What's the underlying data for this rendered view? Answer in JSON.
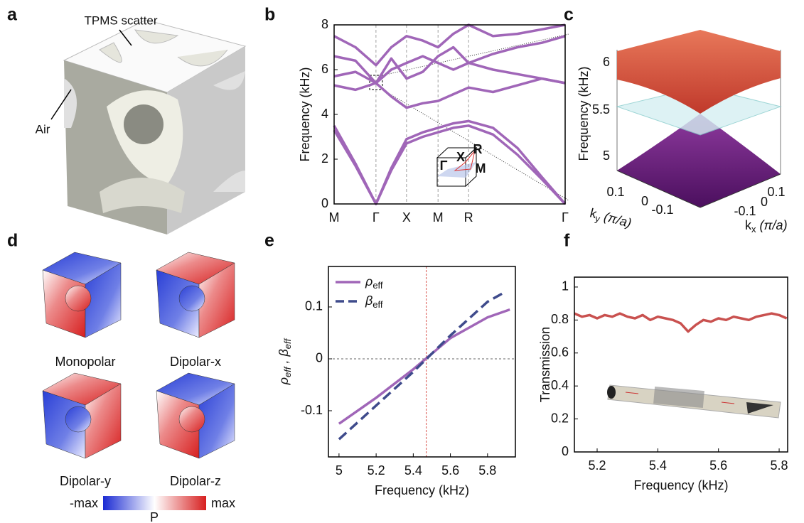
{
  "panel_labels": [
    "a",
    "b",
    "c",
    "d",
    "e",
    "f"
  ],
  "panel_a": {
    "annotations": [
      "TPMS scatter",
      "Air"
    ]
  },
  "panel_c": {
    "ylabel": "Frequency (kHz)",
    "zticks": [
      "6",
      "5.5",
      "5"
    ],
    "ky_ticks": [
      "0.1",
      "0",
      "-0.1"
    ],
    "kx_ticks": [
      "0.1",
      "0",
      "-0.1"
    ],
    "ky_label": {
      "k": "k",
      "sub": "y",
      "unit": "(π/a)"
    },
    "kx_label": {
      "k": "k",
      "sub": "x",
      "unit": "(π/a)"
    }
  },
  "panel_d": {
    "modes": [
      "Monopolar",
      "Dipolar-x",
      "Dipolar-y",
      "Dipolar-z"
    ],
    "colorbar": {
      "min_label": "-max",
      "max_label": "max",
      "title": "P"
    }
  },
  "chart_data": [
    {
      "type": "line",
      "ylabel": "Frequency (kHz)",
      "x": [
        0,
        0.7,
        1.37,
        1.87,
        2.37,
        2.9,
        3.4,
        3.9,
        4.4,
        5.2,
        6.0,
        6.8,
        7.56
      ],
      "xlim": [
        0,
        7.56
      ],
      "xticks": [
        {
          "value": 0,
          "label": "M"
        },
        {
          "value": 1.37,
          "label": "Γ"
        },
        {
          "value": 2.37,
          "label": "X"
        },
        {
          "value": 3.4,
          "label": "M"
        },
        {
          "value": 4.4,
          "label": "R"
        },
        {
          "value": 7.56,
          "label": "Γ"
        }
      ],
      "xgrid": true,
      "ylim": [
        0,
        8
      ],
      "yticks": [
        0,
        2,
        4,
        6,
        8
      ],
      "series": [
        {
          "color": "#a066b8",
          "values": [
            3.3,
            1.7,
            0,
            1.5,
            2.7,
            3.0,
            3.2,
            3.4,
            3.5,
            3.1,
            2.2,
            1.1,
            0
          ]
        },
        {
          "color": "#a066b8",
          "values": [
            3.5,
            1.8,
            0,
            1.6,
            2.9,
            3.2,
            3.4,
            3.6,
            3.7,
            3.4,
            2.5,
            1.2,
            0
          ]
        },
        {
          "color": "#a066b8",
          "values": [
            5.3,
            5.1,
            5.4,
            4.8,
            4.3,
            4.5,
            4.6,
            4.9,
            5.2,
            5.0,
            5.3,
            5.6,
            5.4
          ]
        },
        {
          "color": "#a066b8",
          "values": [
            5.7,
            5.9,
            5.4,
            6.0,
            6.3,
            6.6,
            6.3,
            6.0,
            6.3,
            6.0,
            5.8,
            5.6,
            5.4
          ]
        },
        {
          "color": "#a066b8",
          "values": [
            6.6,
            6.4,
            5.4,
            6.5,
            5.6,
            5.9,
            6.6,
            7.0,
            6.3,
            6.7,
            7.0,
            7.2,
            7.5
          ]
        },
        {
          "color": "#a066b8",
          "values": [
            7.5,
            7.0,
            6.2,
            7.0,
            7.5,
            7.3,
            7.0,
            7.6,
            8.0,
            7.5,
            7.6,
            7.8,
            8
          ]
        }
      ],
      "inset_labels": [
        "X",
        "R",
        "Γ",
        "M"
      ]
    },
    {
      "type": "line",
      "xlabel": "Frequency (kHz)",
      "ylabel_parts": [
        {
          "text": "ρ"
        },
        {
          "text": "eff",
          "sub": true
        },
        {
          "text": " , β"
        },
        {
          "text": "eff",
          "sub": true
        }
      ],
      "xlim": [
        4.943,
        5.95
      ],
      "xticks": [
        5,
        5.2,
        5.4,
        5.6,
        5.8
      ],
      "ylim": [
        -0.189,
        0.178
      ],
      "yticks": [
        -0.1,
        0,
        0.1
      ],
      "series": [
        {
          "name": "ρ",
          "subscript": "eff",
          "color": "#a066b8",
          "dashed": false,
          "x": [
            5,
            5.2,
            5.4,
            5.6,
            5.8,
            5.92
          ],
          "values": [
            -0.125,
            -0.075,
            -0.02,
            0.04,
            0.08,
            0.095
          ]
        },
        {
          "name": "β",
          "subscript": "eff",
          "color": "#3f4b8c",
          "dashed": true,
          "x": [
            5,
            5.2,
            5.4,
            5.6,
            5.8,
            5.9
          ],
          "values": [
            -0.155,
            -0.09,
            -0.025,
            0.045,
            0.11,
            0.13
          ]
        }
      ],
      "vline": 5.47,
      "vline_color": "#d9534f",
      "hline": 0
    },
    {
      "type": "line",
      "xlabel": "Frequency (kHz)",
      "ylabel": "Transmission",
      "x": [
        5.125,
        5.15,
        5.175,
        5.2,
        5.225,
        5.25,
        5.275,
        5.3,
        5.325,
        5.35,
        5.375,
        5.4,
        5.425,
        5.45,
        5.475,
        5.5,
        5.525,
        5.55,
        5.575,
        5.6,
        5.625,
        5.65,
        5.675,
        5.7,
        5.725,
        5.75,
        5.775,
        5.8,
        5.825
      ],
      "xlim": [
        5.125,
        5.828
      ],
      "xticks": [
        5.2,
        5.4,
        5.6,
        5.8
      ],
      "ylim": [
        0,
        1.06
      ],
      "yticks": [
        0,
        0.2,
        0.4,
        0.6,
        0.8,
        1
      ],
      "series": [
        {
          "color": "#c9514f",
          "values": [
            0.84,
            0.82,
            0.83,
            0.81,
            0.83,
            0.82,
            0.84,
            0.82,
            0.81,
            0.83,
            0.8,
            0.82,
            0.81,
            0.8,
            0.78,
            0.73,
            0.77,
            0.8,
            0.79,
            0.81,
            0.8,
            0.82,
            0.81,
            0.8,
            0.82,
            0.83,
            0.84,
            0.83,
            0.81
          ]
        }
      ]
    }
  ]
}
